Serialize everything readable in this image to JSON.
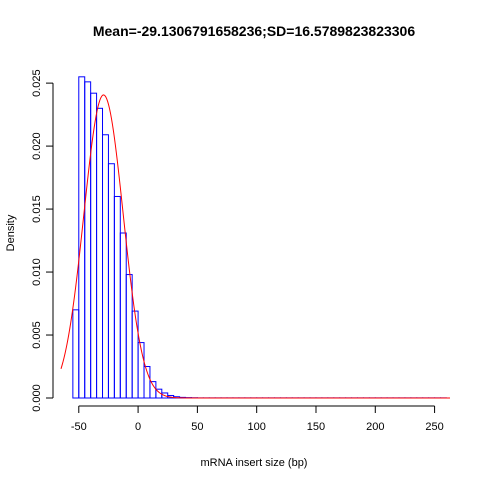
{
  "chart_data": {
    "type": "bar",
    "title": "Mean=-29.1306791658236;SD=16.5789823823306",
    "xlabel": "mRNA insert size (bp)",
    "ylabel": "Density",
    "xlim": [
      -65,
      263
    ],
    "ylim": [
      0,
      0.0262
    ],
    "xticks": [
      -50,
      0,
      50,
      100,
      150,
      200,
      250
    ],
    "xtick_labels": [
      "-50",
      "0",
      "50",
      "100",
      "150",
      "200",
      "250"
    ],
    "yticks": [
      0,
      0.005,
      0.01,
      0.015,
      0.02,
      0.025
    ],
    "ytick_labels": [
      "0.000",
      "0.005",
      "0.010",
      "0.015",
      "0.020",
      "0.025"
    ],
    "grid": false,
    "histogram": {
      "bin_width": 5,
      "bin_starts": [
        -55,
        -50,
        -45,
        -40,
        -35,
        -30,
        -25,
        -20,
        -15,
        -10,
        -5,
        0,
        5,
        10,
        15,
        20,
        25,
        30,
        35,
        40,
        45,
        50,
        55,
        60,
        65,
        70,
        75,
        80,
        85,
        90,
        95,
        100,
        105,
        110,
        115,
        120,
        125,
        130,
        135,
        140,
        145,
        150,
        155,
        160,
        165,
        170,
        175,
        180,
        185,
        190,
        195,
        200,
        205,
        210,
        215,
        220,
        225,
        230,
        235,
        240,
        245,
        250,
        255
      ],
      "densities": [
        0.007,
        0.0255,
        0.0251,
        0.0242,
        0.023,
        0.0209,
        0.0186,
        0.016,
        0.0131,
        0.0098,
        0.0069,
        0.0044,
        0.0025,
        0.0013,
        0.0007,
        0.0004,
        0.0002,
        0.0001,
        5e-05,
        3e-05,
        2e-05,
        1e-05,
        1e-05,
        1e-05,
        1e-05,
        1e-05,
        1e-05,
        1e-05,
        1e-05,
        1e-05,
        1e-05,
        1e-05,
        1e-05,
        1e-05,
        1e-05,
        1e-05,
        1e-05,
        1e-05,
        1e-05,
        1e-05,
        1e-05,
        1e-05,
        1e-05,
        1e-05,
        1e-05,
        1e-05,
        1e-05,
        1e-05,
        1e-05,
        1e-05,
        1e-05,
        1e-05,
        1e-05,
        1e-05,
        1e-05,
        1e-05,
        1e-05,
        1e-05,
        1e-05,
        1e-05,
        1e-05,
        1e-05,
        1e-05
      ],
      "bar_color": "#0000ff"
    },
    "normal_curve": {
      "mean": -29.1306791658236,
      "sd": 16.5789823823306,
      "x_range": [
        -65,
        263
      ],
      "color": "#ff0000"
    }
  }
}
